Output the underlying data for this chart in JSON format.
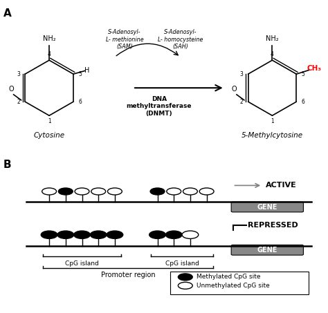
{
  "panel_a_label": "A",
  "panel_b_label": "B",
  "cytosine_label": "Cytosine",
  "methylcytosine_label": "5-Methylcytosine",
  "sam_label": "S-Adenosyl-\nL- methionine\n(SAM)",
  "sah_label": "S-Adenosyl-\nL- homocysteine\n(SAH)",
  "dnmt_label": "DNA\nmethyltransferase\n(DNMT)",
  "nh2_label": "NH₂",
  "ch3_label": "CH₃",
  "h_label": "H",
  "o_label": "O",
  "active_label": "ACTIVE",
  "repressed_label": "REPRESSED",
  "gene_label": "GENE",
  "cpg_island_label": "CpG island",
  "promoter_label": "Promoter region",
  "methylated_label": "Methylated CpG site",
  "unmethylated_label": "Unmethylated CpG site",
  "ring_numbers": [
    "1",
    "2",
    "3",
    "4",
    "5",
    "6"
  ],
  "black": "#000000",
  "red": "#ff0000",
  "gray": "#808080",
  "white": "#ffffff",
  "bg": "#ffffff"
}
